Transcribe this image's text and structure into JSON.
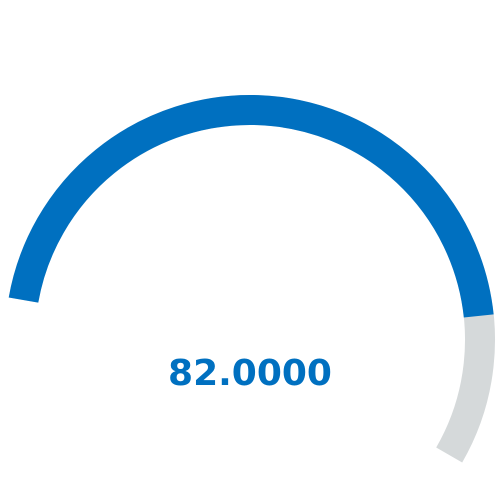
{
  "chart_data": {
    "type": "gauge",
    "value": 82,
    "value_label": "82.0000",
    "min": 0,
    "max": 100,
    "colors": {
      "fill": "#0070C0",
      "track": "#D5D9DA",
      "label": "#0070C0"
    }
  }
}
